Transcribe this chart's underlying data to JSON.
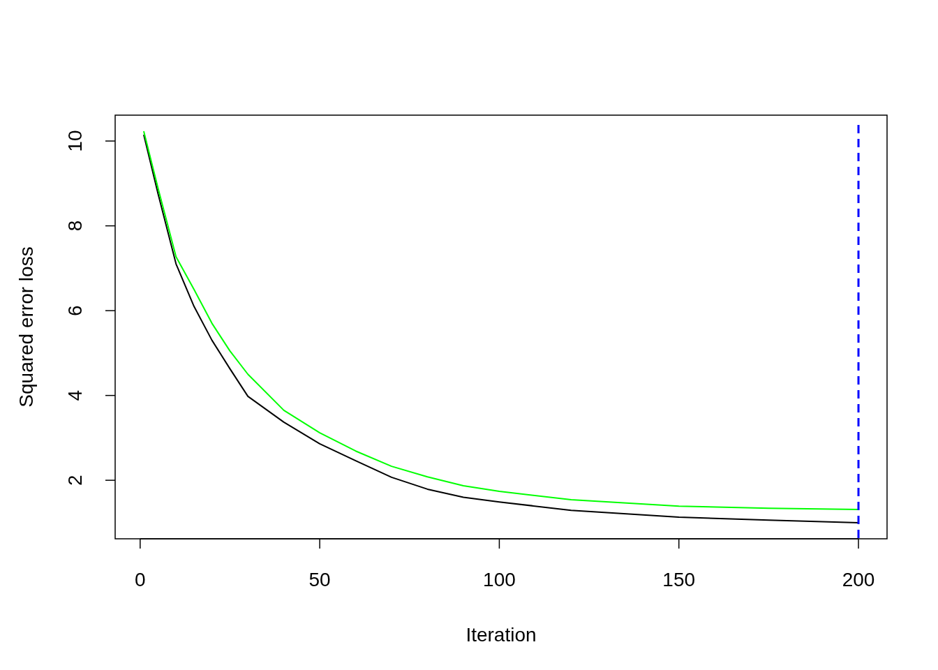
{
  "chart_data": {
    "type": "line",
    "xlabel": "Iteration",
    "ylabel": "Squared error loss",
    "xlim": [
      -6.96,
      207.96
    ],
    "ylim": [
      0.62,
      10.61
    ],
    "xticks": [
      0,
      50,
      100,
      150,
      200
    ],
    "yticks": [
      2,
      4,
      6,
      8,
      10
    ],
    "grid": false,
    "marker": "none",
    "line_style": "solid",
    "series": [
      {
        "color": "#000000",
        "x": [
          1,
          5,
          10,
          15,
          20,
          25,
          30,
          40,
          50,
          60,
          70,
          80,
          90,
          100,
          120,
          150,
          175,
          200
        ],
        "values": [
          10.15,
          8.75,
          7.1,
          6.1,
          5.3,
          4.63,
          3.98,
          3.37,
          2.86,
          2.46,
          2.07,
          1.79,
          1.6,
          1.49,
          1.29,
          1.13,
          1.06,
          1.0
        ]
      },
      {
        "color": "#00ff00",
        "x": [
          1,
          5,
          10,
          15,
          20,
          25,
          30,
          40,
          50,
          60,
          70,
          80,
          90,
          100,
          120,
          150,
          175,
          200
        ],
        "values": [
          10.23,
          8.88,
          7.27,
          6.5,
          5.7,
          5.05,
          4.5,
          3.65,
          3.12,
          2.69,
          2.33,
          2.08,
          1.87,
          1.74,
          1.54,
          1.39,
          1.34,
          1.31
        ]
      }
    ],
    "ref_lines": [
      {
        "axis": "x",
        "value": 200,
        "color": "#0000ff",
        "line_style": "dashed"
      }
    ]
  }
}
